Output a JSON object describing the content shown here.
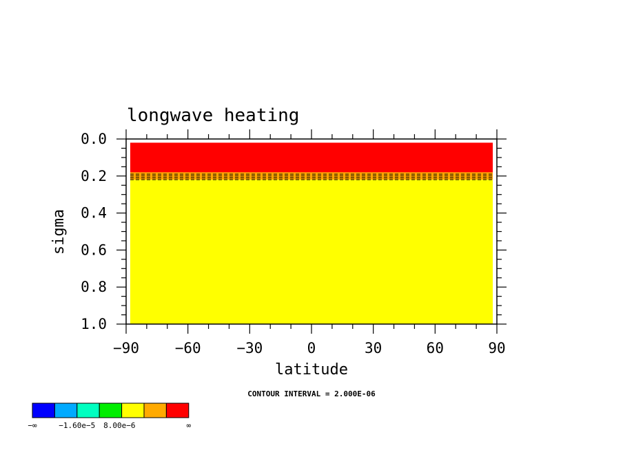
{
  "chart_data": {
    "type": "heatmap",
    "title": "longwave heating",
    "xlabel": "latitude",
    "ylabel": "sigma",
    "x_ticks": [
      -90,
      -60,
      -30,
      0,
      30,
      60,
      90
    ],
    "x_tick_labels": [
      "−90",
      "−60",
      "−30",
      "0",
      "30",
      "60",
      "90"
    ],
    "y_ticks": [
      0.0,
      0.2,
      0.4,
      0.6,
      0.8,
      1.0
    ],
    "y_tick_labels": [
      "0.0",
      "0.2",
      "0.4",
      "0.6",
      "0.8",
      "1.0"
    ],
    "xlim": [
      -90,
      90
    ],
    "ylim": [
      0.0,
      1.0
    ],
    "y_inverted": true,
    "data_xlim": [
      -88,
      88
    ],
    "data_ylim": [
      0.02,
      1.0
    ],
    "bands": [
      {
        "sigma_top": 0.02,
        "sigma_bottom": 0.18,
        "color": "#ff0000"
      },
      {
        "sigma_top": 0.18,
        "sigma_bottom": 0.22,
        "color": "#ffa500"
      },
      {
        "sigma_top": 0.22,
        "sigma_bottom": 1.0,
        "color": "#ffff00"
      }
    ],
    "dashed_contours_sigma": [
      0.19,
      0.2,
      0.21,
      0.22
    ],
    "contour_interval_text": "CONTOUR INTERVAL = 2.000E-06",
    "colorbar": {
      "colors": [
        "#0000ff",
        "#00aaff",
        "#00ffc0",
        "#00ee00",
        "#ffff00",
        "#ffaa00",
        "#ff0000"
      ],
      "labels": [
        "−∞",
        "−1.60e−5",
        "8.00e−6",
        "∞"
      ]
    }
  }
}
